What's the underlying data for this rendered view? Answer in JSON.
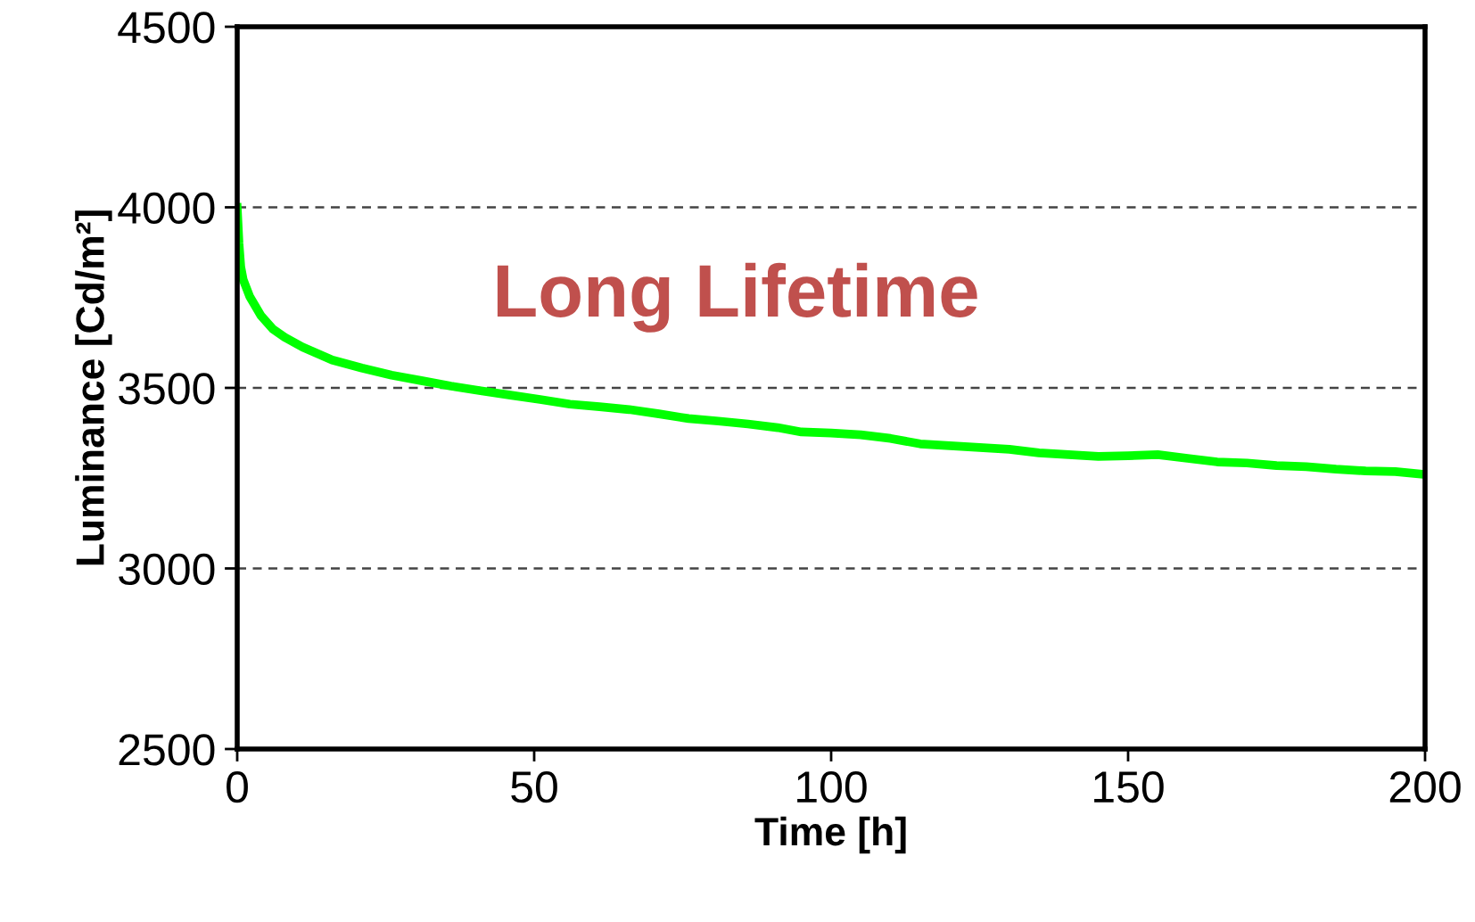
{
  "chart_data": {
    "type": "line",
    "xlabel": "Time [h]",
    "ylabel": "Luminance [Cd/m²]",
    "annotations": [
      "Long Lifetime"
    ],
    "x": [
      0,
      0.3,
      0.6,
      1,
      2.1,
      4,
      6,
      8,
      11,
      16,
      21,
      26,
      31,
      36,
      41,
      46,
      51,
      56,
      61,
      66,
      71,
      76,
      81,
      86,
      91,
      95,
      100,
      105,
      110,
      115,
      120,
      125,
      130,
      135,
      140,
      145,
      150,
      155,
      160,
      165,
      170,
      175,
      180,
      185,
      190,
      195,
      200
    ],
    "series": [
      {
        "color": "#00ff00",
        "values": [
          4000,
          3900,
          3835,
          3800,
          3753,
          3700,
          3663,
          3640,
          3613,
          3577,
          3555,
          3535,
          3520,
          3505,
          3492,
          3480,
          3468,
          3455,
          3448,
          3440,
          3428,
          3415,
          3408,
          3400,
          3390,
          3378,
          3375,
          3370,
          3360,
          3345,
          3340,
          3335,
          3330,
          3320,
          3315,
          3310,
          3312,
          3315,
          3305,
          3295,
          3292,
          3285,
          3282,
          3275,
          3270,
          3268,
          3260
        ]
      }
    ],
    "xlim": [
      0,
      200
    ],
    "ylim": [
      2500,
      4500
    ],
    "xticks": [
      0,
      50,
      100,
      150,
      200
    ],
    "yticks": [
      2500,
      3000,
      3500,
      4000,
      4500
    ],
    "grid": "y",
    "line_style": "solid",
    "marker": "none",
    "legend": false
  }
}
